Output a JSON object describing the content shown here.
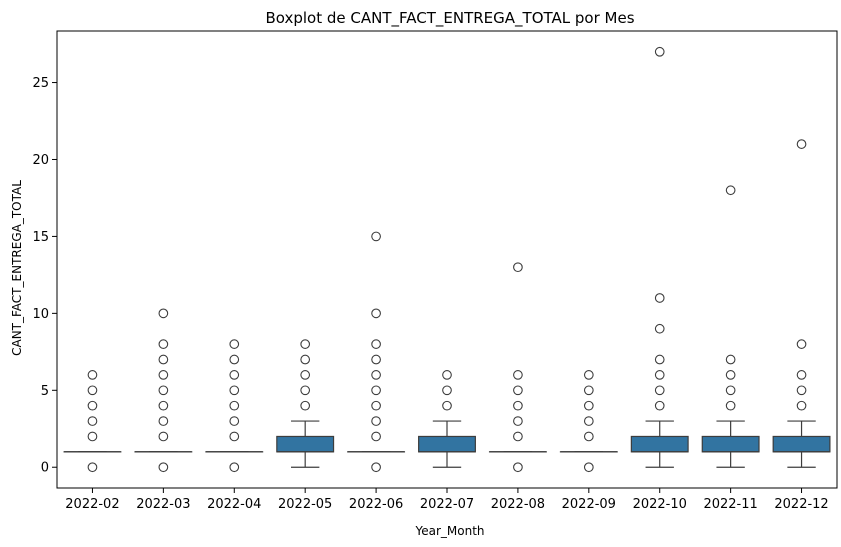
{
  "chart_data": {
    "type": "boxplot",
    "title": "Boxplot de CANT_FACT_ENTREGA_TOTAL por Mes",
    "xlabel": "Year_Month",
    "ylabel": "CANT_FACT_ENTREGA_TOTAL",
    "ylim": [
      -1.35,
      28.35
    ],
    "yticks": [
      0,
      5,
      10,
      15,
      20,
      25
    ],
    "grid": false,
    "box_color": "#3274a1",
    "categories": [
      "2022-02",
      "2022-03",
      "2022-04",
      "2022-05",
      "2022-06",
      "2022-07",
      "2022-08",
      "2022-09",
      "2022-10",
      "2022-11",
      "2022-12"
    ],
    "boxes": [
      {
        "q1": 1,
        "median": 1,
        "q3": 1,
        "whisker_low": 1,
        "whisker_high": 1,
        "outliers": [
          0,
          2,
          3,
          4,
          5,
          6
        ]
      },
      {
        "q1": 1,
        "median": 1,
        "q3": 1,
        "whisker_low": 1,
        "whisker_high": 1,
        "outliers": [
          0,
          2,
          3,
          4,
          5,
          6,
          7,
          8,
          10
        ]
      },
      {
        "q1": 1,
        "median": 1,
        "q3": 1,
        "whisker_low": 1,
        "whisker_high": 1,
        "outliers": [
          0,
          2,
          3,
          4,
          5,
          6,
          7,
          8
        ]
      },
      {
        "q1": 1,
        "median": 1,
        "q3": 2,
        "whisker_low": 0,
        "whisker_high": 3,
        "outliers": [
          4,
          5,
          6,
          7,
          8
        ]
      },
      {
        "q1": 1,
        "median": 1,
        "q3": 1,
        "whisker_low": 1,
        "whisker_high": 1,
        "outliers": [
          0,
          2,
          3,
          4,
          5,
          6,
          7,
          8,
          10,
          15
        ]
      },
      {
        "q1": 1,
        "median": 1,
        "q3": 2,
        "whisker_low": 0,
        "whisker_high": 3,
        "outliers": [
          4,
          5,
          6
        ]
      },
      {
        "q1": 1,
        "median": 1,
        "q3": 1,
        "whisker_low": 1,
        "whisker_high": 1,
        "outliers": [
          0,
          2,
          3,
          4,
          5,
          6,
          13
        ]
      },
      {
        "q1": 1,
        "median": 1,
        "q3": 1,
        "whisker_low": 1,
        "whisker_high": 1,
        "outliers": [
          0,
          2,
          3,
          4,
          5,
          6
        ]
      },
      {
        "q1": 1,
        "median": 1,
        "q3": 2,
        "whisker_low": 0,
        "whisker_high": 3,
        "outliers": [
          4,
          5,
          6,
          7,
          9,
          11,
          27
        ]
      },
      {
        "q1": 1,
        "median": 1,
        "q3": 2,
        "whisker_low": 0,
        "whisker_high": 3,
        "outliers": [
          4,
          5,
          6,
          7,
          18
        ]
      },
      {
        "q1": 1,
        "median": 1,
        "q3": 2,
        "whisker_low": 0,
        "whisker_high": 3,
        "outliers": [
          4,
          5,
          6,
          8,
          21
        ]
      }
    ]
  }
}
